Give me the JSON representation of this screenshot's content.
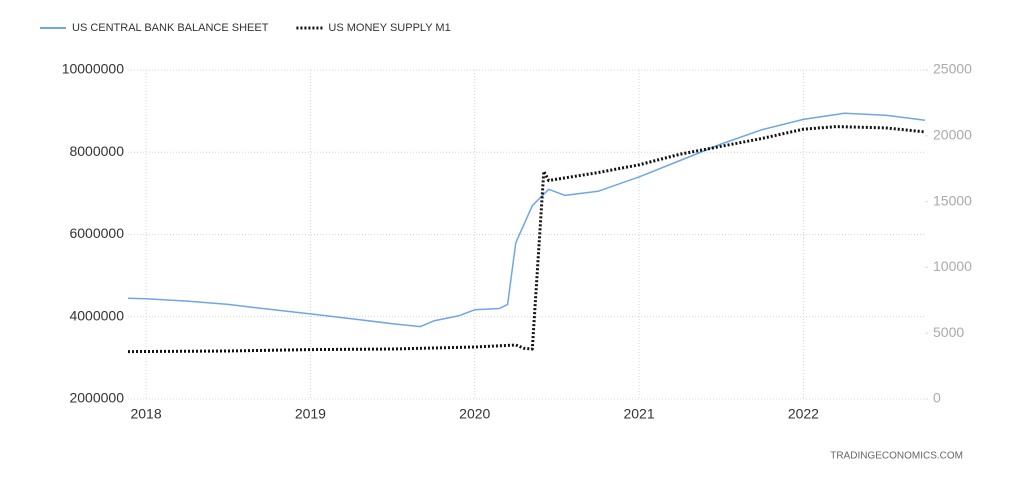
{
  "chart_data": {
    "type": "line",
    "source": "TRADINGECONOMICS.COM",
    "xlim": [
      2017.89,
      2022.74
    ],
    "xticks": [
      2018,
      2019,
      2020,
      2021,
      2022
    ],
    "ylim": [
      2000000,
      10000000
    ],
    "yticks": [
      2000000,
      4000000,
      6000000,
      8000000,
      10000000
    ],
    "y2lim": [
      0,
      25000
    ],
    "y2ticks": [
      0,
      5000,
      10000,
      15000,
      20000,
      25000
    ],
    "grid": true,
    "legend": "top-left",
    "series": [
      {
        "name": "US CENTRAL BANK BALANCE SHEET",
        "color": "#6ea6e8",
        "line_style": "solid",
        "x": [
          2017.89,
          2018.0,
          2018.25,
          2018.5,
          2018.75,
          2019.0,
          2019.25,
          2019.5,
          2019.67,
          2019.75,
          2019.9,
          2020.0,
          2020.15,
          2020.2,
          2020.25,
          2020.35,
          2020.45,
          2020.55,
          2020.75,
          2021.0,
          2021.25,
          2021.5,
          2021.75,
          2022.0,
          2022.25,
          2022.5,
          2022.74
        ],
        "values": [
          4450000,
          4440000,
          4380000,
          4300000,
          4180000,
          4070000,
          3950000,
          3830000,
          3760000,
          3900000,
          4020000,
          4170000,
          4200000,
          4300000,
          5800000,
          6700000,
          7100000,
          6950000,
          7050000,
          7400000,
          7800000,
          8200000,
          8550000,
          8800000,
          8950000,
          8900000,
          8780000
        ]
      },
      {
        "name": "US MONEY SUPPLY M1",
        "color": "#111111",
        "line_style": "dotted",
        "axis": "y2",
        "x": [
          2017.89,
          2018.5,
          2019.0,
          2019.5,
          2020.0,
          2020.25,
          2020.3,
          2020.35,
          2020.42,
          2020.45,
          2020.75,
          2021.0,
          2021.25,
          2021.5,
          2021.75,
          2022.0,
          2022.2,
          2022.5,
          2022.74
        ],
        "values": [
          3600,
          3650,
          3750,
          3800,
          3950,
          4100,
          3850,
          3800,
          17300,
          16600,
          17200,
          17800,
          18600,
          19200,
          19800,
          20500,
          20700,
          20600,
          20300
        ]
      }
    ]
  }
}
